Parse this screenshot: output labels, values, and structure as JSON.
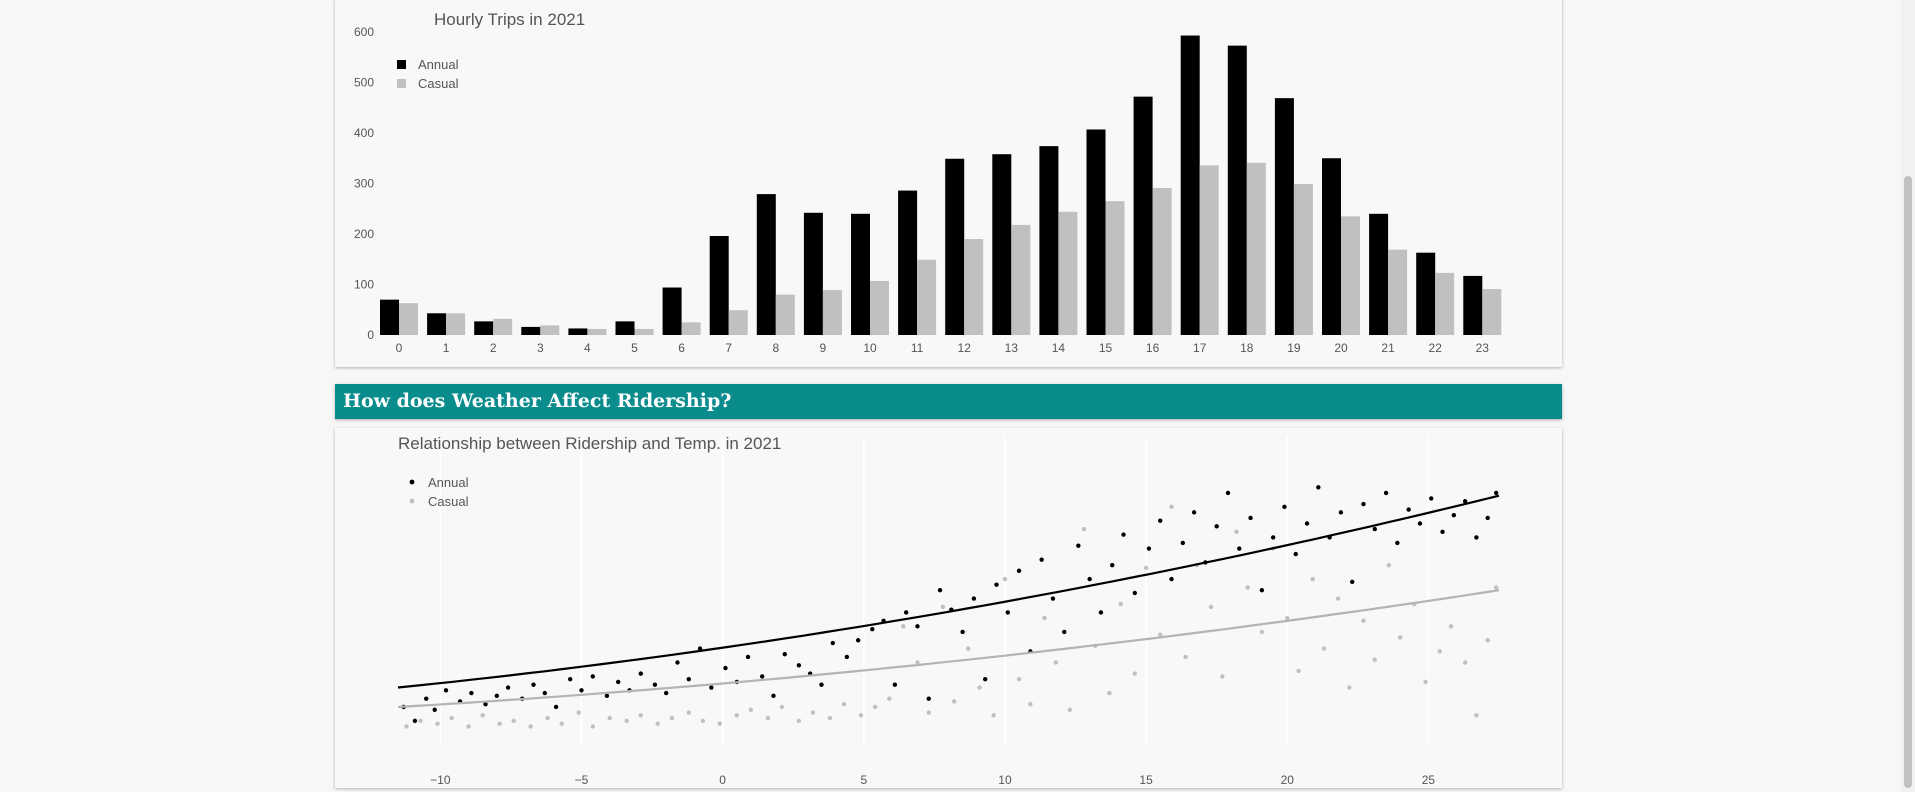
{
  "section": {
    "weather_heading": "How does Weather Affect Ridership?"
  },
  "chart_data": [
    {
      "type": "bar",
      "title": "Hourly Trips in 2021",
      "xlabel": "",
      "ylabel": "",
      "categories": [
        "0",
        "1",
        "2",
        "3",
        "4",
        "5",
        "6",
        "7",
        "8",
        "9",
        "10",
        "11",
        "12",
        "13",
        "14",
        "15",
        "16",
        "17",
        "18",
        "19",
        "20",
        "21",
        "22",
        "23"
      ],
      "series": [
        {
          "name": "Annual",
          "color": "#000000",
          "values": [
            70,
            43,
            27,
            16,
            13,
            27,
            94,
            196,
            279,
            242,
            240,
            286,
            349,
            358,
            374,
            407,
            472,
            593,
            573,
            469,
            350,
            240,
            163,
            117
          ]
        },
        {
          "name": "Casual",
          "color": "#c0c0c0",
          "values": [
            63,
            43,
            32,
            19,
            12,
            12,
            25,
            49,
            80,
            89,
            107,
            149,
            190,
            218,
            244,
            265,
            291,
            336,
            341,
            299,
            235,
            169,
            123,
            91
          ]
        }
      ],
      "yticks": [
        0,
        100,
        200,
        300,
        400,
        500,
        600
      ],
      "ylim": [
        0,
        600
      ],
      "grid": false,
      "legend": "top-left"
    },
    {
      "type": "scatter",
      "title": "Relationship between Ridership and Temp. in 2021",
      "xlabel": "",
      "ylabel": "",
      "xticks": [
        -10,
        -5,
        0,
        5,
        10,
        15,
        20,
        25
      ],
      "xticklabels": [
        "−10",
        "−5",
        "0",
        "5",
        "10",
        "15",
        "20",
        "25"
      ],
      "xlim": [
        -11.5,
        27.5
      ],
      "ylim": [
        0,
        1
      ],
      "grid": true,
      "legend": "top-left",
      "series": [
        {
          "name": "Annual",
          "color": "#000000",
          "trend": {
            "type": "quadratic",
            "x_range": [
              -11.5,
              27.5
            ],
            "y_start": 0.16,
            "y_end": 0.85,
            "curvature": 0.42
          },
          "points": [
            [
              -11.3,
              0.09
            ],
            [
              -10.9,
              0.04
            ],
            [
              -10.5,
              0.12
            ],
            [
              -10.2,
              0.08
            ],
            [
              -9.8,
              0.15
            ],
            [
              -9.3,
              0.11
            ],
            [
              -8.9,
              0.14
            ],
            [
              -8.4,
              0.1
            ],
            [
              -8.0,
              0.13
            ],
            [
              -7.6,
              0.16
            ],
            [
              -7.1,
              0.12
            ],
            [
              -6.7,
              0.17
            ],
            [
              -6.3,
              0.14
            ],
            [
              -5.9,
              0.09
            ],
            [
              -5.4,
              0.19
            ],
            [
              -5.0,
              0.15
            ],
            [
              -4.6,
              0.2
            ],
            [
              -4.1,
              0.13
            ],
            [
              -3.7,
              0.18
            ],
            [
              -3.3,
              0.15
            ],
            [
              -2.9,
              0.21
            ],
            [
              -2.4,
              0.17
            ],
            [
              -2.0,
              0.14
            ],
            [
              -1.6,
              0.25
            ],
            [
              -1.2,
              0.19
            ],
            [
              -0.8,
              0.3
            ],
            [
              -0.4,
              0.16
            ],
            [
              0.1,
              0.23
            ],
            [
              0.5,
              0.18
            ],
            [
              0.9,
              0.27
            ],
            [
              1.4,
              0.2
            ],
            [
              1.8,
              0.13
            ],
            [
              2.2,
              0.28
            ],
            [
              2.7,
              0.24
            ],
            [
              3.1,
              0.21
            ],
            [
              3.5,
              0.17
            ],
            [
              3.9,
              0.32
            ],
            [
              4.4,
              0.27
            ],
            [
              4.8,
              0.33
            ],
            [
              5.3,
              0.37
            ],
            [
              5.7,
              0.4
            ],
            [
              6.1,
              0.17
            ],
            [
              6.5,
              0.43
            ],
            [
              6.9,
              0.38
            ],
            [
              7.3,
              0.12
            ],
            [
              7.7,
              0.51
            ],
            [
              8.1,
              0.44
            ],
            [
              8.5,
              0.36
            ],
            [
              8.9,
              0.48
            ],
            [
              9.3,
              0.19
            ],
            [
              9.7,
              0.53
            ],
            [
              10.1,
              0.43
            ],
            [
              10.5,
              0.58
            ],
            [
              10.9,
              0.29
            ],
            [
              11.3,
              0.62
            ],
            [
              11.7,
              0.48
            ],
            [
              12.1,
              0.36
            ],
            [
              12.6,
              0.67
            ],
            [
              13.0,
              0.55
            ],
            [
              13.4,
              0.43
            ],
            [
              13.8,
              0.6
            ],
            [
              14.2,
              0.71
            ],
            [
              14.6,
              0.5
            ],
            [
              15.1,
              0.66
            ],
            [
              15.5,
              0.76
            ],
            [
              15.9,
              0.55
            ],
            [
              16.3,
              0.68
            ],
            [
              16.7,
              0.79
            ],
            [
              17.1,
              0.61
            ],
            [
              17.5,
              0.74
            ],
            [
              17.9,
              0.86
            ],
            [
              18.3,
              0.66
            ],
            [
              18.7,
              0.77
            ],
            [
              19.1,
              0.51
            ],
            [
              19.5,
              0.7
            ],
            [
              19.9,
              0.81
            ],
            [
              20.3,
              0.64
            ],
            [
              20.7,
              0.75
            ],
            [
              21.1,
              0.88
            ],
            [
              21.5,
              0.7
            ],
            [
              21.9,
              0.79
            ],
            [
              22.3,
              0.54
            ],
            [
              22.7,
              0.82
            ],
            [
              23.1,
              0.73
            ],
            [
              23.5,
              0.86
            ],
            [
              23.9,
              0.68
            ],
            [
              24.3,
              0.8
            ],
            [
              24.7,
              0.75
            ],
            [
              25.1,
              0.84
            ],
            [
              25.5,
              0.72
            ],
            [
              25.9,
              0.78
            ],
            [
              26.3,
              0.83
            ],
            [
              26.7,
              0.7
            ],
            [
              27.1,
              0.77
            ],
            [
              27.4,
              0.86
            ]
          ]
        },
        {
          "name": "Casual",
          "color": "#c0c0c0",
          "trend": {
            "type": "quadratic",
            "x_range": [
              -11.5,
              27.5
            ],
            "y_start": 0.09,
            "y_end": 0.51,
            "curvature": 0.45
          },
          "points": [
            [
              -11.2,
              0.02
            ],
            [
              -10.7,
              0.04
            ],
            [
              -10.1,
              0.03
            ],
            [
              -9.6,
              0.05
            ],
            [
              -9.0,
              0.02
            ],
            [
              -8.5,
              0.06
            ],
            [
              -7.9,
              0.03
            ],
            [
              -7.4,
              0.04
            ],
            [
              -6.8,
              0.02
            ],
            [
              -6.2,
              0.05
            ],
            [
              -5.7,
              0.03
            ],
            [
              -5.1,
              0.07
            ],
            [
              -4.6,
              0.02
            ],
            [
              -4.0,
              0.05
            ],
            [
              -3.4,
              0.04
            ],
            [
              -2.9,
              0.06
            ],
            [
              -2.3,
              0.03
            ],
            [
              -1.8,
              0.05
            ],
            [
              -1.2,
              0.07
            ],
            [
              -0.7,
              0.04
            ],
            [
              -0.1,
              0.03
            ],
            [
              0.5,
              0.06
            ],
            [
              1.0,
              0.08
            ],
            [
              1.6,
              0.05
            ],
            [
              2.1,
              0.09
            ],
            [
              2.7,
              0.04
            ],
            [
              3.2,
              0.07
            ],
            [
              3.8,
              0.05
            ],
            [
              4.3,
              0.1
            ],
            [
              4.9,
              0.06
            ],
            [
              5.4,
              0.09
            ],
            [
              5.9,
              0.12
            ],
            [
              6.4,
              0.38
            ],
            [
              6.9,
              0.25
            ],
            [
              7.3,
              0.07
            ],
            [
              7.8,
              0.45
            ],
            [
              8.2,
              0.11
            ],
            [
              8.7,
              0.3
            ],
            [
              9.1,
              0.16
            ],
            [
              9.6,
              0.06
            ],
            [
              10.0,
              0.55
            ],
            [
              10.5,
              0.19
            ],
            [
              10.9,
              0.1
            ],
            [
              11.4,
              0.41
            ],
            [
              11.8,
              0.25
            ],
            [
              12.3,
              0.08
            ],
            [
              12.8,
              0.73
            ],
            [
              13.2,
              0.31
            ],
            [
              13.7,
              0.14
            ],
            [
              14.1,
              0.46
            ],
            [
              14.6,
              0.21
            ],
            [
              15.0,
              0.59
            ],
            [
              15.5,
              0.35
            ],
            [
              15.9,
              0.81
            ],
            [
              16.4,
              0.27
            ],
            [
              16.8,
              0.6
            ],
            [
              17.3,
              0.45
            ],
            [
              17.7,
              0.2
            ],
            [
              18.2,
              0.72
            ],
            [
              18.6,
              0.52
            ],
            [
              19.1,
              0.36
            ],
            [
              19.5,
              0.66
            ],
            [
              20.0,
              0.41
            ],
            [
              20.4,
              0.22
            ],
            [
              20.9,
              0.55
            ],
            [
              21.3,
              0.3
            ],
            [
              21.8,
              0.48
            ],
            [
              22.2,
              0.16
            ],
            [
              22.7,
              0.4
            ],
            [
              23.1,
              0.26
            ],
            [
              23.6,
              0.6
            ],
            [
              24.0,
              0.34
            ],
            [
              24.5,
              0.46
            ],
            [
              24.9,
              0.18
            ],
            [
              25.4,
              0.29
            ],
            [
              25.8,
              0.38
            ],
            [
              26.3,
              0.25
            ],
            [
              26.7,
              0.06
            ],
            [
              27.1,
              0.33
            ],
            [
              27.4,
              0.52
            ]
          ]
        }
      ]
    }
  ]
}
